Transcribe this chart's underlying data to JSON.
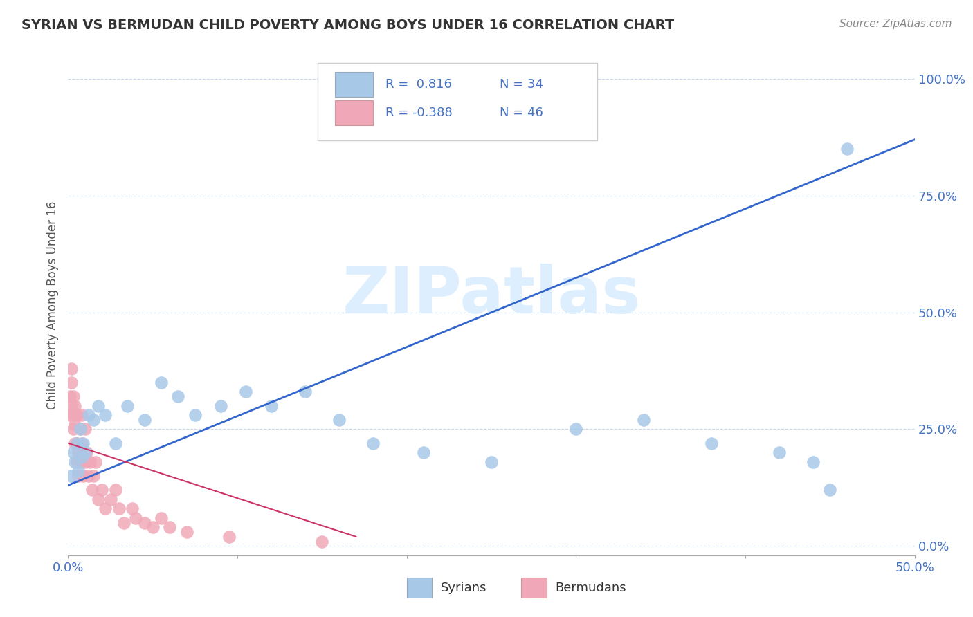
{
  "title": "SYRIAN VS BERMUDAN CHILD POVERTY AMONG BOYS UNDER 16 CORRELATION CHART",
  "source": "Source: ZipAtlas.com",
  "ylabel": "Child Poverty Among Boys Under 16",
  "xlabel": "",
  "xlim": [
    0.0,
    0.5
  ],
  "ylim": [
    -0.02,
    1.05
  ],
  "xticks": [
    0.0,
    0.1,
    0.2,
    0.3,
    0.4,
    0.5
  ],
  "xticklabels_sparse": [
    "0.0%",
    "",
    "",
    "",
    "",
    "50.0%"
  ],
  "yticks": [
    0.0,
    0.25,
    0.5,
    0.75,
    1.0
  ],
  "yticklabels": [
    "0.0%",
    "25.0%",
    "50.0%",
    "75.0%",
    "100.0%"
  ],
  "syrian_color": "#a8c8e8",
  "bermudan_color": "#f0a8b8",
  "syrian_line_color": "#3366cc",
  "bermudan_line_color": "#cc3366",
  "watermark_color": "#ddeeff",
  "background_color": "#ffffff",
  "plot_bg_color": "#ffffff",
  "grid_color": "#c8d8e8",
  "legend_label1": "Syrians",
  "legend_label2": "Bermudans",
  "syrian_R": 0.816,
  "syrian_N": 34,
  "bermudan_R": -0.388,
  "bermudan_N": 46,
  "syrian_x": [
    0.002,
    0.003,
    0.004,
    0.005,
    0.006,
    0.007,
    0.008,
    0.009,
    0.01,
    0.012,
    0.015,
    0.018,
    0.022,
    0.028,
    0.035,
    0.045,
    0.055,
    0.065,
    0.075,
    0.09,
    0.105,
    0.12,
    0.14,
    0.16,
    0.18,
    0.21,
    0.25,
    0.3,
    0.34,
    0.38,
    0.42,
    0.44,
    0.45,
    0.46
  ],
  "syrian_y": [
    0.15,
    0.2,
    0.18,
    0.22,
    0.16,
    0.25,
    0.19,
    0.22,
    0.2,
    0.28,
    0.27,
    0.3,
    0.28,
    0.22,
    0.3,
    0.27,
    0.35,
    0.32,
    0.28,
    0.3,
    0.33,
    0.3,
    0.33,
    0.27,
    0.22,
    0.2,
    0.18,
    0.25,
    0.27,
    0.22,
    0.2,
    0.18,
    0.12,
    0.85
  ],
  "bermudan_x": [
    0.001,
    0.001,
    0.002,
    0.002,
    0.002,
    0.003,
    0.003,
    0.003,
    0.004,
    0.004,
    0.004,
    0.005,
    0.005,
    0.005,
    0.006,
    0.006,
    0.007,
    0.007,
    0.008,
    0.008,
    0.009,
    0.009,
    0.01,
    0.01,
    0.011,
    0.012,
    0.013,
    0.014,
    0.015,
    0.016,
    0.018,
    0.02,
    0.022,
    0.025,
    0.028,
    0.03,
    0.033,
    0.038,
    0.04,
    0.045,
    0.05,
    0.055,
    0.06,
    0.07,
    0.095,
    0.15
  ],
  "bermudan_y": [
    0.28,
    0.32,
    0.3,
    0.35,
    0.38,
    0.25,
    0.28,
    0.32,
    0.22,
    0.26,
    0.3,
    0.18,
    0.22,
    0.28,
    0.15,
    0.2,
    0.25,
    0.18,
    0.22,
    0.28,
    0.15,
    0.2,
    0.18,
    0.25,
    0.2,
    0.15,
    0.18,
    0.12,
    0.15,
    0.18,
    0.1,
    0.12,
    0.08,
    0.1,
    0.12,
    0.08,
    0.05,
    0.08,
    0.06,
    0.05,
    0.04,
    0.06,
    0.04,
    0.03,
    0.02,
    0.01
  ],
  "syrian_line_x": [
    0.0,
    0.5
  ],
  "syrian_line_y": [
    0.13,
    0.87
  ],
  "bermudan_line_x": [
    0.0,
    0.17
  ],
  "bermudan_line_y": [
    0.22,
    0.02
  ]
}
